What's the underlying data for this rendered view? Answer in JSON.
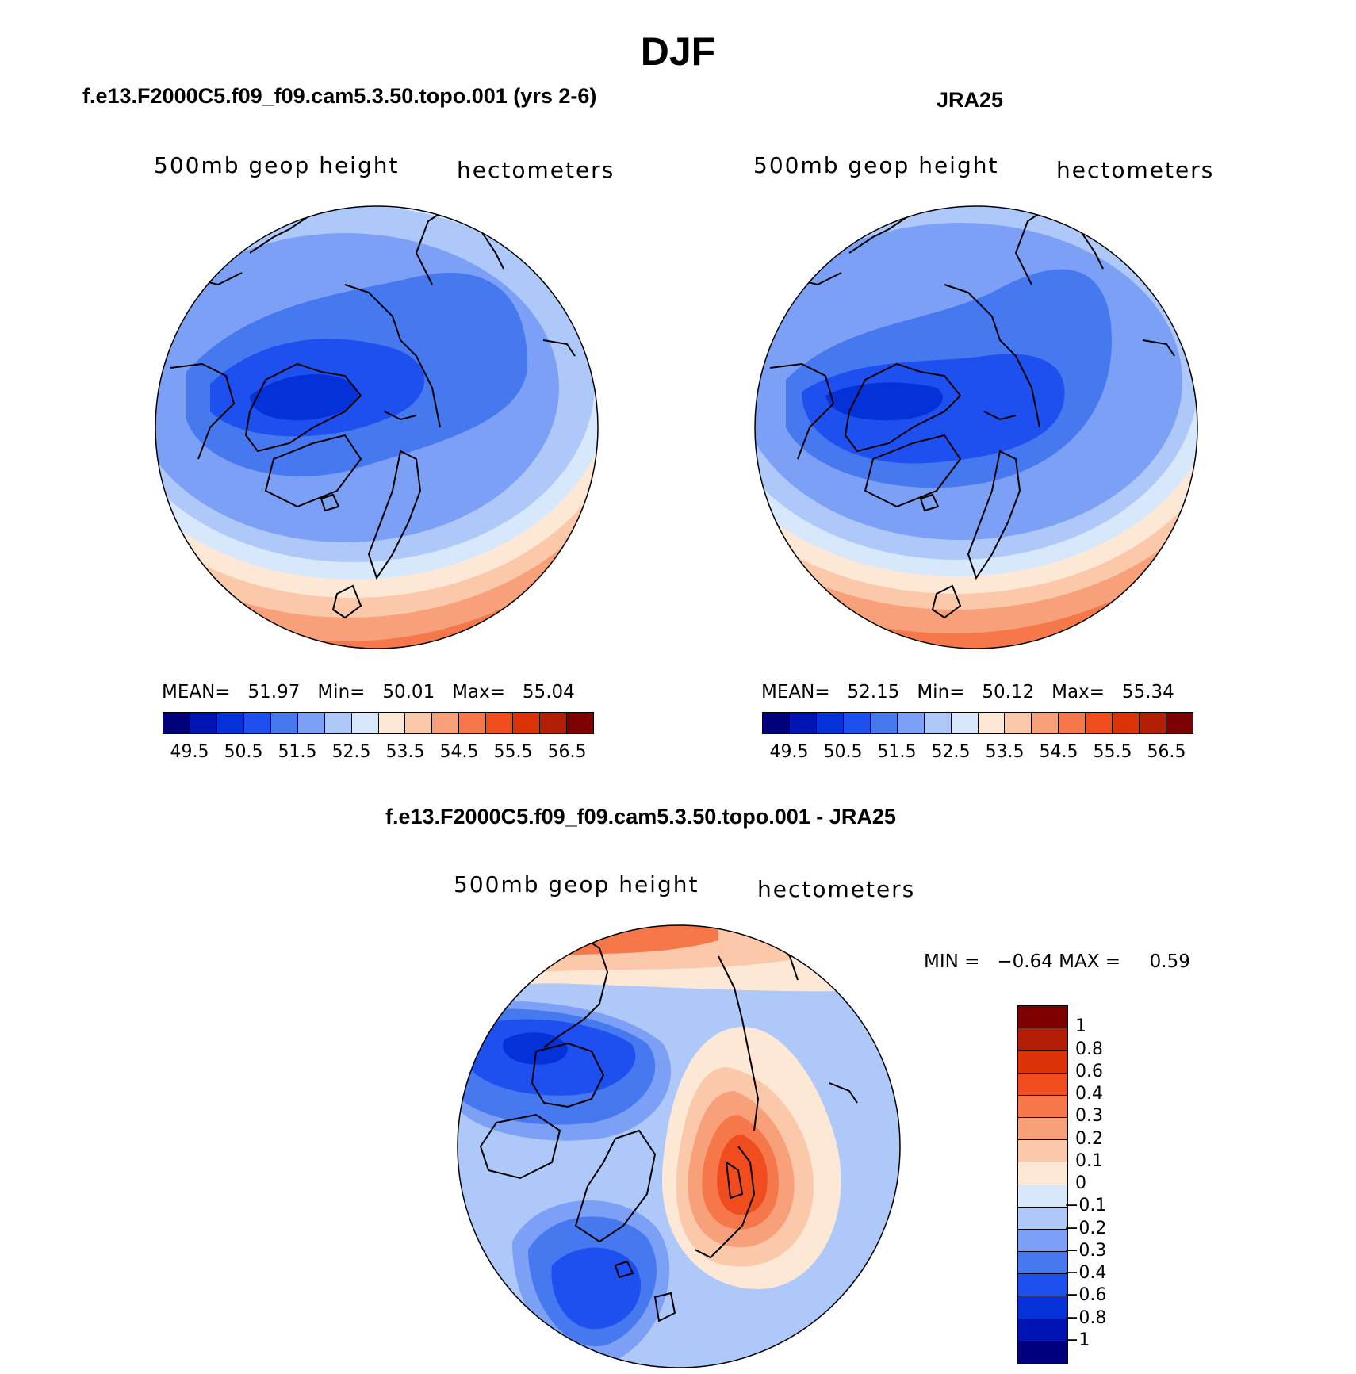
{
  "figure_title": "DJF",
  "panels": [
    {
      "title": "f.e13.F2000C5.f09_f09.cam5.3.50.topo.001 (yrs 2-6)",
      "left_label": "500mb  geop  height",
      "right_label": "hectometers",
      "stats": {
        "mean_label": "MEAN=",
        "mean": "51.97",
        "min_label": "Min=",
        "min": "50.01",
        "max_label": "Max=",
        "max": "55.04"
      }
    },
    {
      "title": "JRA25",
      "left_label": "500mb  geop  height",
      "right_label": "hectometers",
      "stats": {
        "mean_label": "MEAN=",
        "mean": "52.15",
        "min_label": "Min=",
        "min": "50.12",
        "max_label": "Max=",
        "max": "55.34"
      }
    },
    {
      "title": "f.e13.F2000C5.f09_f09.cam5.3.50.topo.001 - JRA25",
      "left_label": "500mb  geop  height",
      "right_label": "hectometers",
      "stats": {
        "min_label": "MIN =",
        "min": "−0.64",
        "max_label": "MAX =",
        "max": "0.59"
      }
    }
  ],
  "abs_colorbar": {
    "colors": [
      "#00007f",
      "#0014b4",
      "#0532d8",
      "#1e50f0",
      "#4678f0",
      "#7ca0f5",
      "#aec8fa",
      "#d8e8fc",
      "#fde8d6",
      "#fbc8aa",
      "#f7a07a",
      "#f6784a",
      "#f04c1e",
      "#dc3208",
      "#b41e05",
      "#7f0000"
    ],
    "ticks": [
      "49.5",
      "50.5",
      "51.5",
      "52.5",
      "53.5",
      "54.5",
      "55.5",
      "56.5"
    ]
  },
  "diff_colorbar": {
    "colors": [
      "#7f0000",
      "#b41e05",
      "#dc3208",
      "#f04c1e",
      "#f6784a",
      "#f7a07a",
      "#fbc8aa",
      "#fde8d6",
      "#d8e8fc",
      "#aec8fa",
      "#7ca0f5",
      "#4678f0",
      "#1e50f0",
      "#0532d8",
      "#0014b4",
      "#00007f"
    ],
    "ticks": [
      "1",
      "0.8",
      "0.6",
      "0.4",
      "0.3",
      "0.2",
      "0.1",
      "0",
      "−0.1",
      "−0.2",
      "−0.3",
      "−0.4",
      "−0.6",
      "−0.8",
      "−1"
    ]
  },
  "chart_data": [
    {
      "type": "heatmap",
      "title": "f.e13.F2000C5.f09_f09.cam5.3.50.topo.001 (yrs 2-6)",
      "variable": "500mb geop height",
      "units": "hectometers",
      "projection": "north polar stereographic",
      "levels": [
        49.5,
        50.0,
        50.5,
        51.0,
        51.5,
        52.0,
        52.5,
        53.0,
        53.5,
        54.0,
        54.5,
        55.0,
        55.5,
        56.0,
        56.5
      ],
      "mean": 51.97,
      "min": 50.01,
      "max": 55.04
    },
    {
      "type": "heatmap",
      "title": "JRA25",
      "variable": "500mb geop height",
      "units": "hectometers",
      "projection": "north polar stereographic",
      "levels": [
        49.5,
        50.0,
        50.5,
        51.0,
        51.5,
        52.0,
        52.5,
        53.0,
        53.5,
        54.0,
        54.5,
        55.0,
        55.5,
        56.0,
        56.5
      ],
      "mean": 52.15,
      "min": 50.12,
      "max": 55.34
    },
    {
      "type": "heatmap",
      "title": "f.e13.F2000C5.f09_f09.cam5.3.50.topo.001 - JRA25",
      "variable": "500mb geop height",
      "units": "hectometers",
      "projection": "north polar stereographic",
      "levels": [
        -1,
        -0.8,
        -0.6,
        -0.4,
        -0.3,
        -0.2,
        -0.1,
        0,
        0.1,
        0.2,
        0.3,
        0.4,
        0.6,
        0.8,
        1
      ],
      "min": -0.64,
      "max": 0.59
    }
  ]
}
